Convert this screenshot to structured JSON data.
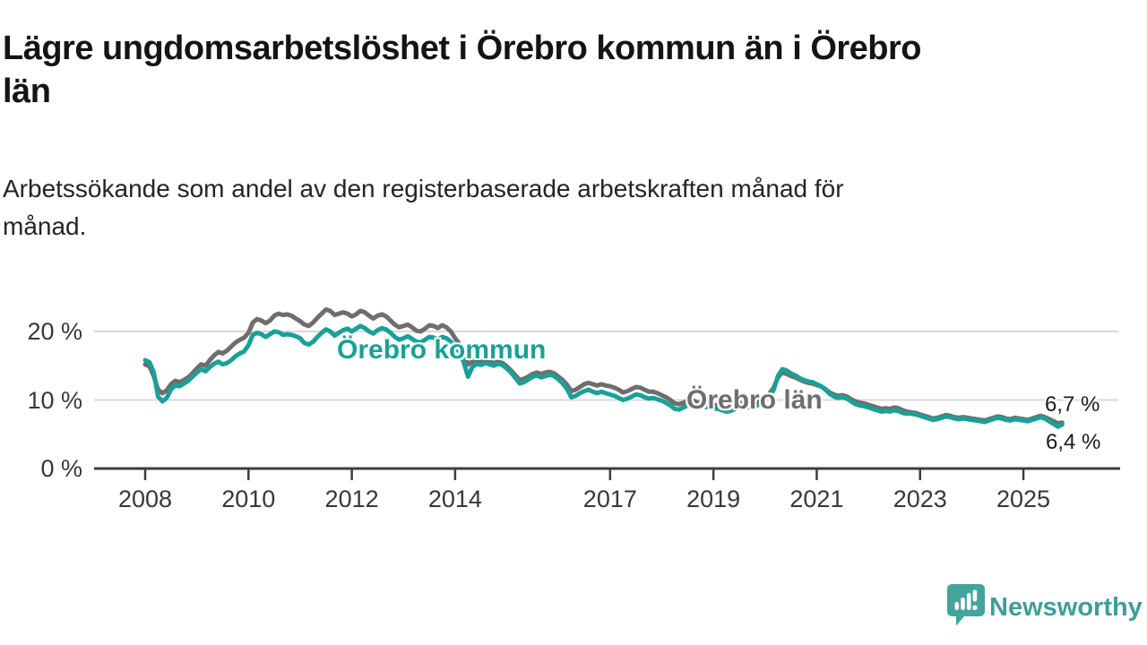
{
  "header": {
    "title_lines": [
      "Lägre ungdomsarbetslöshet i Örebro kommun än i Örebro",
      "län"
    ],
    "subtitle_lines": [
      "Arbetssökande som andel av den registerbaserade arbetskraften månad för",
      "månad."
    ]
  },
  "chart_data": {
    "type": "line",
    "unit": "%",
    "grid": "horizontal",
    "ylim": [
      0,
      24
    ],
    "start_year": 2008,
    "months_per_point": 1,
    "y_ticks": [
      {
        "label": "20 %",
        "value": 20
      },
      {
        "label": "10 %",
        "value": 10
      },
      {
        "label": "0 %",
        "value": 0
      }
    ],
    "x_ticks": [
      {
        "label": "2008",
        "year": 2008
      },
      {
        "label": "2010",
        "year": 2010
      },
      {
        "label": "2012",
        "year": 2012
      },
      {
        "label": "2014",
        "year": 2014
      },
      {
        "label": "2017",
        "year": 2017
      },
      {
        "label": "2019",
        "year": 2019
      },
      {
        "label": "2021",
        "year": 2021
      },
      {
        "label": "2023",
        "year": 2023
      },
      {
        "label": "2025",
        "year": 2025
      }
    ],
    "series": [
      {
        "name": "Örebro län",
        "color": "#6e6e6e",
        "values": [
          15.2,
          14.9,
          13.5,
          11.5,
          11.0,
          11.4,
          12.3,
          12.8,
          12.6,
          12.9,
          13.3,
          13.9,
          14.6,
          15.2,
          15.0,
          15.8,
          16.5,
          17.0,
          16.8,
          17.2,
          17.8,
          18.4,
          18.8,
          19.1,
          19.8,
          21.3,
          21.8,
          21.6,
          21.2,
          21.6,
          22.3,
          22.6,
          22.4,
          22.5,
          22.3,
          21.9,
          21.5,
          21.0,
          20.8,
          21.3,
          22.0,
          22.6,
          23.2,
          23.0,
          22.4,
          22.6,
          22.8,
          22.6,
          22.2,
          22.5,
          23.0,
          22.8,
          22.3,
          21.9,
          22.3,
          22.5,
          22.2,
          21.6,
          21.0,
          20.6,
          20.8,
          21.0,
          20.6,
          20.1,
          20.0,
          20.4,
          20.9,
          20.8,
          20.5,
          20.9,
          20.6,
          20.0,
          19.0,
          18.2,
          16.8,
          15.2,
          15.6,
          15.9,
          15.6,
          15.8,
          15.6,
          15.4,
          15.6,
          15.4,
          14.9,
          14.3,
          13.6,
          12.9,
          13.1,
          13.4,
          13.8,
          14.0,
          13.8,
          14.0,
          14.1,
          13.9,
          13.4,
          12.9,
          12.2,
          11.3,
          11.5,
          11.9,
          12.3,
          12.5,
          12.3,
          12.1,
          12.3,
          12.1,
          12.0,
          11.8,
          11.5,
          11.1,
          11.3,
          11.6,
          11.9,
          11.8,
          11.5,
          11.2,
          11.2,
          11.0,
          10.7,
          10.4,
          10.0,
          9.5,
          9.4,
          9.6,
          9.9,
          10.0,
          9.7,
          9.5,
          9.5,
          9.4,
          9.3,
          9.2,
          9.0,
          8.8,
          8.9,
          9.2,
          9.5,
          9.6,
          9.4,
          9.5,
          9.7,
          9.9,
          10.6,
          10.9,
          11.8,
          13.3,
          14.0,
          13.8,
          13.5,
          13.3,
          13.0,
          12.7,
          12.5,
          12.4,
          12.2,
          12.0,
          11.6,
          11.1,
          10.8,
          10.6,
          10.7,
          10.5,
          10.1,
          9.8,
          9.6,
          9.5,
          9.3,
          9.1,
          8.9,
          8.7,
          8.8,
          8.7,
          8.9,
          8.8,
          8.5,
          8.3,
          8.2,
          8.1,
          7.9,
          7.7,
          7.5,
          7.3,
          7.4,
          7.6,
          7.8,
          7.7,
          7.5,
          7.4,
          7.5,
          7.4,
          7.3,
          7.2,
          7.1,
          7.0,
          7.2,
          7.4,
          7.6,
          7.5,
          7.3,
          7.2,
          7.4,
          7.3,
          7.2,
          7.1,
          7.3,
          7.5,
          7.7,
          7.5,
          7.2,
          6.9,
          6.6,
          6.7
        ]
      },
      {
        "name": "Örebro kommun",
        "color": "#1aa098",
        "values": [
          15.8,
          15.5,
          14.0,
          10.5,
          9.8,
          10.3,
          11.5,
          12.2,
          12.0,
          12.4,
          12.8,
          13.4,
          14.0,
          14.5,
          14.2,
          14.8,
          15.3,
          15.6,
          15.2,
          15.4,
          15.8,
          16.4,
          16.8,
          17.1,
          18.0,
          19.5,
          19.8,
          19.6,
          19.2,
          19.6,
          20.0,
          19.9,
          19.5,
          19.6,
          19.5,
          19.3,
          19.0,
          18.3,
          18.1,
          18.5,
          19.2,
          19.8,
          20.3,
          20.0,
          19.4,
          19.8,
          20.2,
          20.4,
          20.0,
          20.4,
          20.8,
          20.5,
          20.0,
          19.7,
          20.2,
          20.5,
          20.3,
          19.8,
          19.2,
          18.8,
          19.0,
          19.3,
          18.9,
          18.5,
          18.4,
          18.8,
          19.2,
          19.1,
          18.8,
          19.2,
          19.0,
          18.5,
          17.8,
          17.0,
          15.5,
          13.4,
          14.8,
          15.3,
          15.1,
          15.4,
          15.2,
          15.0,
          15.3,
          15.1,
          14.6,
          14.0,
          13.2,
          12.4,
          12.6,
          13.0,
          13.4,
          13.6,
          13.3,
          13.5,
          13.7,
          13.5,
          13.0,
          12.4,
          11.6,
          10.4,
          10.6,
          11.0,
          11.3,
          11.5,
          11.2,
          11.0,
          11.2,
          11.0,
          10.8,
          10.6,
          10.3,
          10.0,
          10.2,
          10.5,
          10.8,
          10.7,
          10.4,
          10.2,
          10.3,
          10.1,
          9.9,
          9.6,
          9.2,
          8.7,
          8.6,
          8.9,
          9.2,
          9.3,
          9.0,
          8.9,
          9.0,
          8.9,
          8.8,
          8.7,
          8.5,
          8.3,
          8.4,
          8.7,
          9.0,
          9.1,
          8.9,
          9.0,
          9.2,
          9.4,
          10.2,
          10.5,
          11.5,
          13.5,
          14.5,
          14.3,
          13.9,
          13.6,
          13.2,
          12.9,
          12.7,
          12.6,
          12.3,
          12.0,
          11.5,
          10.9,
          10.5,
          10.3,
          10.4,
          10.2,
          9.8,
          9.4,
          9.2,
          9.1,
          8.9,
          8.7,
          8.5,
          8.3,
          8.4,
          8.3,
          8.5,
          8.4,
          8.1,
          8.0,
          8.0,
          7.9,
          7.7,
          7.5,
          7.3,
          7.1,
          7.2,
          7.4,
          7.6,
          7.5,
          7.3,
          7.2,
          7.3,
          7.2,
          7.1,
          7.0,
          6.9,
          6.8,
          7.0,
          7.2,
          7.4,
          7.3,
          7.1,
          7.0,
          7.2,
          7.1,
          7.0,
          6.9,
          7.1,
          7.3,
          7.5,
          7.3,
          6.9,
          6.5,
          6.1,
          6.4
        ]
      }
    ],
    "series_annotations": [
      {
        "text": "Örebro kommun",
        "color": "#1aa098"
      },
      {
        "text": "Örebro län",
        "color": "#6e6e6e"
      }
    ],
    "end_labels": [
      {
        "text": "6,7 %",
        "series": "Örebro län"
      },
      {
        "text": "6,4 %",
        "series": "Örebro kommun"
      }
    ],
    "axis_color": "#3e3e3e",
    "gridline_color": "#d8d8d8"
  },
  "footer": {
    "brand": "Newsworthy",
    "brand_color": "#3f9e97",
    "logo_icon": "newsworthy-speech-bubble-barchart-icon"
  }
}
